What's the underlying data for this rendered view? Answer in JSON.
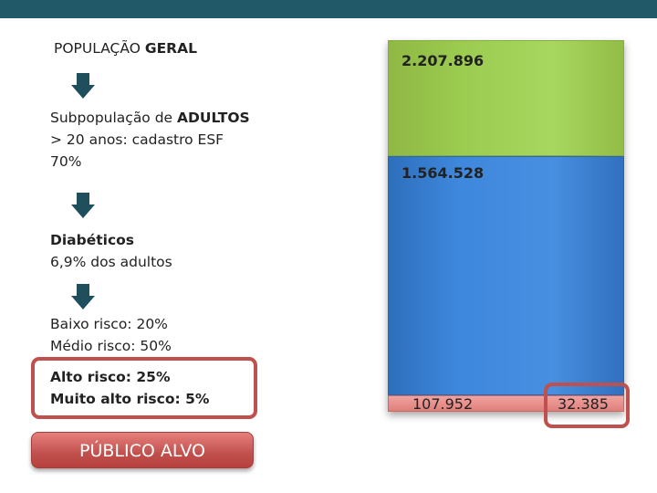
{
  "steps": {
    "geral": {
      "prefix": "POPULAÇÃO ",
      "bold": "GERAL"
    },
    "adultos": {
      "line1_prefix": "Subpopulação de ",
      "line1_bold": "ADULTOS",
      "line2": "> 20 anos: cadastro ESF",
      "line3": "70%"
    },
    "diabeticos": {
      "line1": "Diabéticos",
      "line2": "6,9% dos adultos"
    },
    "risco": {
      "line1": "Baixo risco: 20%",
      "line2": "Médio risco: 50%"
    },
    "alto_risco": {
      "line1": "Alto risco: 25%",
      "line2": "Muito alto risco: 5%"
    }
  },
  "button": {
    "label": "PÚBLICO ALVO"
  },
  "bars": {
    "total": "2.207.896",
    "adultos": "1.564.528",
    "diabeticos": "107.952",
    "alvo": "32.385"
  },
  "colors": {
    "topbar": "#215968",
    "arrow": "#1f4e5c",
    "highlight": "#c0504d",
    "green": "#9bcb4f",
    "blue": "#3e88dd",
    "red": "#e8918d"
  }
}
